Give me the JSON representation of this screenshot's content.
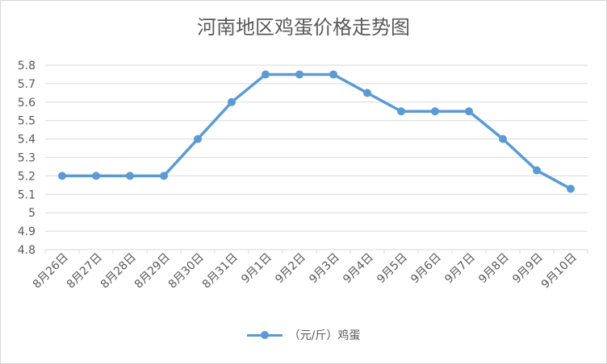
{
  "chart_data": {
    "type": "line",
    "title": "河南地区鸡蛋价格走势图",
    "categories": [
      "8月26日",
      "8月27日",
      "8月28日",
      "8月29日",
      "8月30日",
      "8月31日",
      "9月1日",
      "9月2日",
      "9月3日",
      "9月4日",
      "9月5日",
      "9月6日",
      "9月7日",
      "9月8日",
      "9月9日",
      "9月10日"
    ],
    "series": [
      {
        "name": "（元/斤）鸡蛋",
        "values": [
          5.2,
          5.2,
          5.2,
          5.2,
          5.4,
          5.6,
          5.75,
          5.75,
          5.75,
          5.65,
          5.55,
          5.55,
          5.55,
          5.4,
          5.23,
          5.13
        ]
      }
    ],
    "yticks": [
      "5.8",
      "5.7",
      "5.6",
      "5.5",
      "5.4",
      "5.3",
      "5.2",
      "5.1",
      "5",
      "4.9",
      "4.8"
    ],
    "ylim": [
      4.8,
      5.8
    ],
    "grid": true,
    "legend_position": "bottom",
    "color": "#5b9bd5"
  }
}
